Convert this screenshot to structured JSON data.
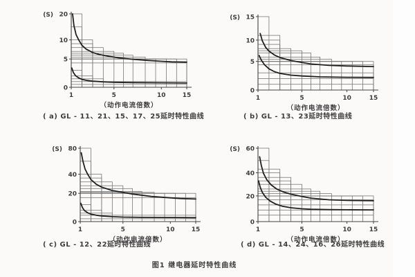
{
  "page": {
    "background": "#fcf9f9",
    "figure_caption": "图1  继电器延时特性曲线"
  },
  "chart_data": [
    {
      "id": "a",
      "type": "line",
      "caption": "( a) GL - 11、21、15、17、25延时特性曲线",
      "ylabel": "(S)",
      "xlabel": "（动作电流倍数）",
      "x_range": [
        1,
        15
      ],
      "y_range": [
        0,
        20
      ],
      "grid": "tolerance-boxes",
      "legend_position": "none",
      "x_ticks": [
        [
          1,
          0
        ],
        [
          5,
          0.37
        ],
        [
          10,
          0.78
        ],
        [
          15,
          1
        ]
      ],
      "y_ticks": [
        [
          0,
          0
        ],
        [
          5,
          0.385
        ],
        [
          10,
          0.645
        ],
        [
          20,
          1
        ]
      ],
      "tolerance_boxes": [
        [
          2,
          20
        ],
        [
          2,
          15
        ],
        [
          3,
          10
        ],
        [
          3,
          9
        ],
        [
          4,
          8
        ],
        [
          5,
          7
        ],
        [
          6,
          6.5
        ],
        [
          7,
          6
        ],
        [
          8.3,
          5.5
        ],
        [
          9.4,
          5
        ],
        [
          11,
          5
        ],
        [
          13,
          5
        ],
        [
          15,
          5
        ],
        [
          15,
          4.3
        ],
        [
          2,
          3
        ],
        [
          3,
          2
        ],
        [
          4,
          1.5
        ],
        [
          15,
          1
        ],
        [
          15,
          0.5
        ]
      ],
      "series": [
        {
          "name": "upper-limit-curve",
          "points": [
            [
              1.12,
              20
            ],
            [
              1.25,
              15.5
            ],
            [
              1.45,
              12
            ],
            [
              1.7,
              10
            ],
            [
              2,
              8.6
            ],
            [
              2.4,
              7.6
            ],
            [
              3,
              6.7
            ],
            [
              3.6,
              6.2
            ],
            [
              4.5,
              5.7
            ],
            [
              5.5,
              5.3
            ],
            [
              7,
              4.95
            ],
            [
              8.5,
              4.75
            ],
            [
              10,
              4.6
            ],
            [
              12,
              4.5
            ],
            [
              15,
              4.45
            ]
          ]
        },
        {
          "name": "lower-limit-curve",
          "points": [
            [
              1.05,
              3.4
            ],
            [
              1.2,
              2.6
            ],
            [
              1.4,
              2.05
            ],
            [
              1.7,
              1.65
            ],
            [
              2,
              1.4
            ],
            [
              2.5,
              1.2
            ],
            [
              3,
              1.08
            ],
            [
              4,
              0.95
            ],
            [
              5,
              0.88
            ],
            [
              7,
              0.82
            ],
            [
              10,
              0.78
            ],
            [
              15,
              0.75
            ]
          ]
        }
      ]
    },
    {
      "id": "b",
      "type": "line",
      "caption": "( b) GL - 13、23延时特性曲线",
      "ylabel": "(S)",
      "xlabel": "（动作电流倍数）",
      "x_range": [
        1,
        15
      ],
      "y_range": [
        0,
        15
      ],
      "grid": "tolerance-boxes",
      "legend_position": "none",
      "x_ticks": [
        [
          1,
          0
        ],
        [
          5,
          0.38
        ],
        [
          10,
          0.77
        ],
        [
          15,
          1
        ]
      ],
      "y_ticks": [
        [
          0,
          0
        ],
        [
          5,
          0.39
        ],
        [
          10,
          0.68
        ],
        [
          15,
          1
        ]
      ],
      "tolerance_boxes": [
        [
          2,
          15
        ],
        [
          3,
          11
        ],
        [
          3,
          10
        ],
        [
          3,
          9
        ],
        [
          4,
          8
        ],
        [
          5,
          7.5
        ],
        [
          6,
          7
        ],
        [
          7,
          6
        ],
        [
          8.3,
          5.5
        ],
        [
          9.4,
          5
        ],
        [
          11,
          5
        ],
        [
          13,
          5
        ],
        [
          15,
          5
        ],
        [
          15,
          4.4
        ],
        [
          15,
          3
        ],
        [
          15,
          2
        ],
        [
          15,
          1
        ]
      ],
      "series": [
        {
          "name": "upper-limit-curve",
          "points": [
            [
              1.2,
              11.4
            ],
            [
              1.4,
              9.8
            ],
            [
              1.7,
              8.3
            ],
            [
              2,
              7.4
            ],
            [
              2.5,
              6.5
            ],
            [
              3,
              5.9
            ],
            [
              4,
              5.2
            ],
            [
              5,
              4.8
            ],
            [
              6,
              4.55
            ],
            [
              8,
              4.3
            ],
            [
              10,
              4.2
            ],
            [
              15,
              4.1
            ]
          ]
        },
        {
          "name": "lower-limit-curve",
          "points": [
            [
              1.1,
              6.4
            ],
            [
              1.3,
              5.3
            ],
            [
              1.6,
              4.4
            ],
            [
              2,
              3.7
            ],
            [
              2.5,
              3.2
            ],
            [
              3,
              2.9
            ],
            [
              4,
              2.6
            ],
            [
              5,
              2.45
            ],
            [
              7,
              2.3
            ],
            [
              10,
              2.22
            ],
            [
              15,
              2.2
            ]
          ]
        }
      ]
    },
    {
      "id": "c",
      "type": "line",
      "caption": "( c) GL - 12、22延时特性曲线",
      "ylabel": "(S)",
      "xlabel": "（动作电流倍数）",
      "x_range": [
        1,
        15
      ],
      "y_range": [
        0,
        80
      ],
      "grid": "tolerance-boxes",
      "legend_position": "none",
      "x_ticks": [
        [
          1,
          0
        ],
        [
          5,
          0.37
        ],
        [
          10,
          0.78
        ],
        [
          15,
          1
        ]
      ],
      "y_ticks": [
        [
          0,
          0
        ],
        [
          20,
          0.385
        ],
        [
          40,
          0.645
        ],
        [
          80,
          1
        ]
      ],
      "tolerance_boxes": [
        [
          2,
          80
        ],
        [
          2,
          60
        ],
        [
          3,
          40
        ],
        [
          3,
          36
        ],
        [
          4,
          32
        ],
        [
          5,
          28
        ],
        [
          6,
          25
        ],
        [
          7,
          22
        ],
        [
          8.3,
          21
        ],
        [
          9.4,
          20
        ],
        [
          11,
          20
        ],
        [
          13,
          20
        ],
        [
          15,
          20
        ],
        [
          15,
          17
        ],
        [
          2,
          12
        ],
        [
          3,
          8
        ],
        [
          4,
          6
        ],
        [
          15,
          4.5
        ],
        [
          15,
          2
        ]
      ],
      "series": [
        {
          "name": "upper-limit-curve",
          "points": [
            [
              1.1,
              73
            ],
            [
              1.25,
              60
            ],
            [
              1.45,
              48
            ],
            [
              1.7,
              40
            ],
            [
              2,
              34.5
            ],
            [
              2.5,
              29.5
            ],
            [
              3,
              26.5
            ],
            [
              4,
              23
            ],
            [
              5,
              21
            ],
            [
              6,
              19.5
            ],
            [
              8,
              17.8
            ],
            [
              10,
              16.8
            ],
            [
              12,
              16.3
            ],
            [
              15,
              16
            ]
          ]
        },
        {
          "name": "lower-limit-curve",
          "points": [
            [
              1.05,
              13
            ],
            [
              1.2,
              10
            ],
            [
              1.4,
              7.8
            ],
            [
              1.7,
              6.2
            ],
            [
              2,
              5.3
            ],
            [
              2.5,
              4.5
            ],
            [
              3,
              4
            ],
            [
              4,
              3.5
            ],
            [
              5,
              3.2
            ],
            [
              7,
              3
            ],
            [
              10,
              2.9
            ],
            [
              15,
              2.8
            ]
          ]
        }
      ]
    },
    {
      "id": "d",
      "type": "line",
      "caption": "( d) GL - 14、24、16、26延时特性曲线",
      "ylabel": "(S)",
      "xlabel": "（动作电流倍数）",
      "x_range": [
        1,
        15
      ],
      "y_range": [
        0,
        60
      ],
      "grid": "tolerance-boxes",
      "legend_position": "none",
      "x_ticks": [
        [
          1,
          0
        ],
        [
          5,
          0.38
        ],
        [
          10,
          0.77
        ],
        [
          15,
          1
        ]
      ],
      "y_ticks": [
        [
          0,
          0
        ],
        [
          20,
          0.35
        ],
        [
          40,
          0.665
        ],
        [
          60,
          1
        ]
      ],
      "tolerance_boxes": [
        [
          2,
          60
        ],
        [
          2,
          50
        ],
        [
          3,
          43
        ],
        [
          3,
          40
        ],
        [
          4,
          36
        ],
        [
          4,
          33
        ],
        [
          5,
          30
        ],
        [
          6,
          26
        ],
        [
          7,
          24
        ],
        [
          8.3,
          22
        ],
        [
          9.4,
          20
        ],
        [
          11,
          20
        ],
        [
          13,
          20
        ],
        [
          15,
          20
        ],
        [
          15,
          17
        ],
        [
          15,
          13
        ],
        [
          15,
          9
        ],
        [
          15,
          5
        ]
      ],
      "series": [
        {
          "name": "upper-limit-curve",
          "points": [
            [
              1.15,
              53
            ],
            [
              1.3,
              46
            ],
            [
              1.5,
              39.5
            ],
            [
              1.8,
              34
            ],
            [
              2.2,
              29.5
            ],
            [
              2.7,
              26
            ],
            [
              3.3,
              23.5
            ],
            [
              4,
              21.5
            ],
            [
              5,
              19.5
            ],
            [
              6,
              18.3
            ],
            [
              8,
              17
            ],
            [
              10,
              16.5
            ],
            [
              15,
              16.2
            ]
          ]
        },
        {
          "name": "lower-limit-curve",
          "points": [
            [
              1.05,
              33
            ],
            [
              1.2,
              27.5
            ],
            [
              1.4,
              23
            ],
            [
              1.7,
              19
            ],
            [
              2.1,
              16
            ],
            [
              2.6,
              13.7
            ],
            [
              3.2,
              12
            ],
            [
              4,
              10.8
            ],
            [
              5,
              10
            ],
            [
              6,
              9.6
            ],
            [
              8,
              9.3
            ],
            [
              10,
              9.2
            ],
            [
              15,
              9.1
            ]
          ]
        }
      ]
    }
  ]
}
